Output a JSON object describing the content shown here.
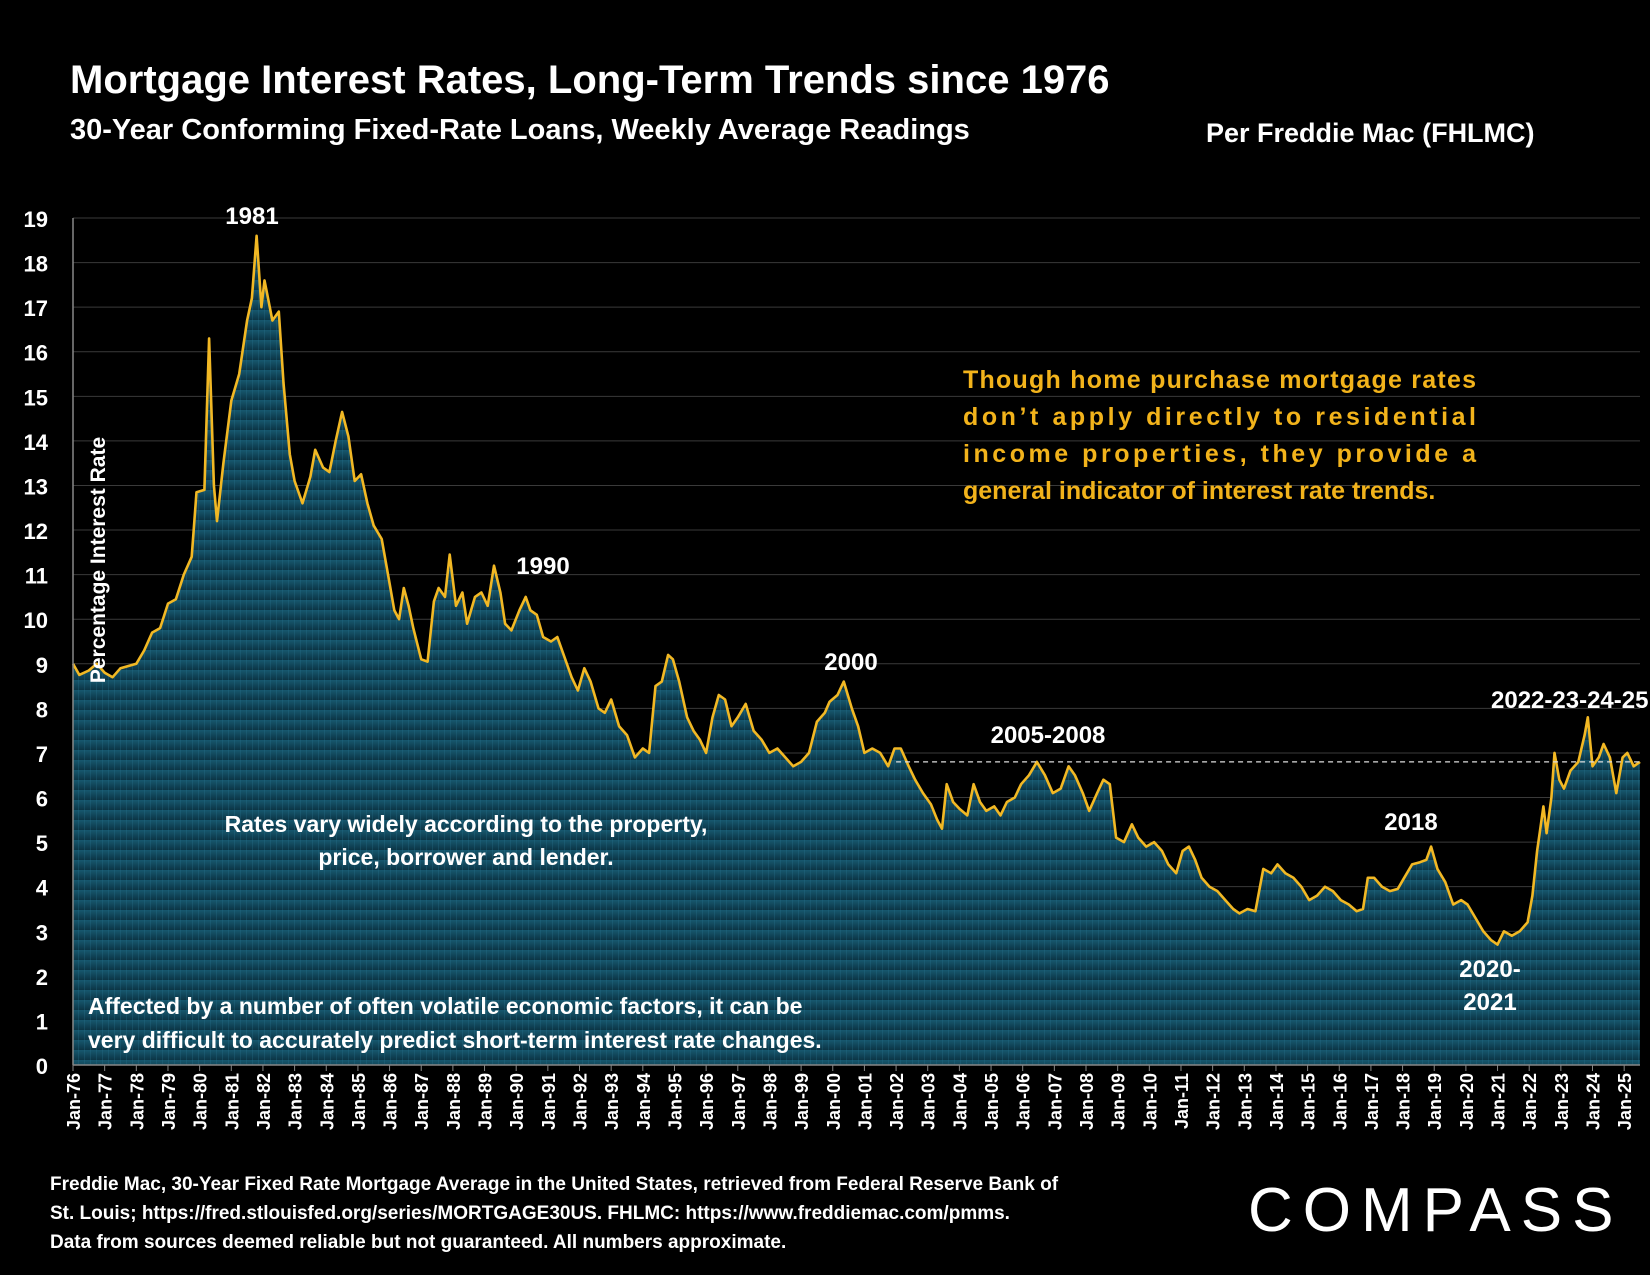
{
  "header": {
    "title": "Mortgage Interest Rates, Long-Term Trends since 1976",
    "subtitle": "30-Year Conforming Fixed-Rate Loans, Weekly Average Readings",
    "source_right": "Per Freddie Mac (FHLMC)"
  },
  "footer": {
    "line1": "Freddie Mac, 30-Year Fixed Rate Mortgage Average in the United States, retrieved from Federal Reserve Bank of",
    "line2": "St.  Louis;  https://fred.stlouisfed.org/series/MORTGAGE30US.  FHLMC:  https://www.freddiemac.com/pmms.",
    "line3": "Data from sources deemed reliable but not guaranteed. All numbers approximate.",
    "logo": "COMPASS"
  },
  "colors": {
    "background": "#000000",
    "line": "#f2b824",
    "area_top": "#16546a",
    "area_bottom": "#0b3344",
    "annotation_gold": "#f2b31b",
    "text": "#ffffff"
  },
  "chart_data": {
    "type": "area",
    "ylabel": "Percentage Interest  Rate",
    "ylim": [
      0,
      19
    ],
    "yticks": [
      "0",
      "1",
      "2",
      "3",
      "4",
      "5",
      "6",
      "7",
      "8",
      "9",
      "10",
      "11",
      "12",
      "13",
      "14",
      "15",
      "16",
      "17",
      "18",
      "19"
    ],
    "grid": true,
    "x_tick_labels": [
      "Jan-76",
      "Jan-77",
      "Jan-78",
      "Jan-79",
      "Jan-80",
      "Jan-81",
      "Jan-82",
      "Jan-83",
      "Jan-84",
      "Jan-85",
      "Jan-86",
      "Jan-87",
      "Jan-88",
      "Jan-89",
      "Jan-90",
      "Jan-91",
      "Jan-92",
      "Jan-93",
      "Jan-94",
      "Jan-95",
      "Jan-96",
      "Jan-97",
      "Jan-98",
      "Jan-99",
      "Jan-00",
      "Jan-01",
      "Jan-02",
      "Jan-03",
      "Jan-04",
      "Jan-05",
      "Jan-06",
      "Jan-07",
      "Jan-08",
      "Jan-09",
      "Jan-10",
      "Jan-11",
      "Jan-12",
      "Jan-13",
      "Jan-14",
      "Jan-15",
      "Jan-16",
      "Jan-17",
      "Jan-18",
      "Jan-19",
      "Jan-20",
      "Jan-21",
      "Jan-22",
      "Jan-23",
      "Jan-24",
      "Jan-25"
    ],
    "x_range": [
      1976.0,
      2025.5
    ],
    "series": [
      {
        "points": [
          [
            1976.0,
            9.0
          ],
          [
            1976.2,
            8.75
          ],
          [
            1976.5,
            8.85
          ],
          [
            1976.75,
            9.0
          ],
          [
            1977.0,
            8.8
          ],
          [
            1977.25,
            8.7
          ],
          [
            1977.5,
            8.9
          ],
          [
            1977.75,
            8.95
          ],
          [
            1978.0,
            9.0
          ],
          [
            1978.25,
            9.3
          ],
          [
            1978.5,
            9.7
          ],
          [
            1978.75,
            9.8
          ],
          [
            1979.0,
            10.35
          ],
          [
            1979.25,
            10.45
          ],
          [
            1979.5,
            11.0
          ],
          [
            1979.75,
            11.4
          ],
          [
            1979.9,
            12.85
          ],
          [
            1980.15,
            12.9
          ],
          [
            1980.3,
            16.3
          ],
          [
            1980.45,
            13.0
          ],
          [
            1980.55,
            12.2
          ],
          [
            1980.75,
            13.5
          ],
          [
            1981.0,
            14.9
          ],
          [
            1981.25,
            15.5
          ],
          [
            1981.5,
            16.7
          ],
          [
            1981.65,
            17.2
          ],
          [
            1981.8,
            18.6
          ],
          [
            1981.95,
            17.0
          ],
          [
            1982.05,
            17.6
          ],
          [
            1982.3,
            16.7
          ],
          [
            1982.5,
            16.9
          ],
          [
            1982.65,
            15.3
          ],
          [
            1982.85,
            13.7
          ],
          [
            1983.0,
            13.1
          ],
          [
            1983.25,
            12.6
          ],
          [
            1983.5,
            13.2
          ],
          [
            1983.65,
            13.8
          ],
          [
            1983.9,
            13.4
          ],
          [
            1984.1,
            13.3
          ],
          [
            1984.3,
            14.0
          ],
          [
            1984.5,
            14.65
          ],
          [
            1984.7,
            14.1
          ],
          [
            1984.9,
            13.1
          ],
          [
            1985.1,
            13.25
          ],
          [
            1985.3,
            12.6
          ],
          [
            1985.5,
            12.1
          ],
          [
            1985.75,
            11.8
          ],
          [
            1986.0,
            10.8
          ],
          [
            1986.15,
            10.2
          ],
          [
            1986.3,
            10.0
          ],
          [
            1986.45,
            10.7
          ],
          [
            1986.6,
            10.3
          ],
          [
            1986.75,
            9.8
          ],
          [
            1987.0,
            9.1
          ],
          [
            1987.2,
            9.05
          ],
          [
            1987.4,
            10.4
          ],
          [
            1987.55,
            10.7
          ],
          [
            1987.75,
            10.5
          ],
          [
            1987.9,
            11.45
          ],
          [
            1988.1,
            10.3
          ],
          [
            1988.3,
            10.6
          ],
          [
            1988.45,
            9.9
          ],
          [
            1988.7,
            10.5
          ],
          [
            1988.9,
            10.6
          ],
          [
            1989.1,
            10.3
          ],
          [
            1989.3,
            11.2
          ],
          [
            1989.5,
            10.6
          ],
          [
            1989.65,
            9.9
          ],
          [
            1989.85,
            9.75
          ],
          [
            1990.1,
            10.2
          ],
          [
            1990.3,
            10.5
          ],
          [
            1990.45,
            10.2
          ],
          [
            1990.65,
            10.1
          ],
          [
            1990.85,
            9.6
          ],
          [
            1991.1,
            9.5
          ],
          [
            1991.3,
            9.6
          ],
          [
            1991.5,
            9.2
          ],
          [
            1991.75,
            8.7
          ],
          [
            1991.95,
            8.4
          ],
          [
            1992.15,
            8.9
          ],
          [
            1992.35,
            8.6
          ],
          [
            1992.6,
            8.0
          ],
          [
            1992.8,
            7.9
          ],
          [
            1993.0,
            8.2
          ],
          [
            1993.25,
            7.6
          ],
          [
            1993.5,
            7.4
          ],
          [
            1993.75,
            6.9
          ],
          [
            1994.0,
            7.1
          ],
          [
            1994.2,
            7.0
          ],
          [
            1994.4,
            8.5
          ],
          [
            1994.6,
            8.6
          ],
          [
            1994.8,
            9.2
          ],
          [
            1994.95,
            9.1
          ],
          [
            1995.15,
            8.6
          ],
          [
            1995.4,
            7.8
          ],
          [
            1995.6,
            7.5
          ],
          [
            1995.8,
            7.3
          ],
          [
            1996.0,
            7.0
          ],
          [
            1996.2,
            7.8
          ],
          [
            1996.4,
            8.3
          ],
          [
            1996.6,
            8.2
          ],
          [
            1996.8,
            7.6
          ],
          [
            1997.0,
            7.8
          ],
          [
            1997.25,
            8.1
          ],
          [
            1997.5,
            7.5
          ],
          [
            1997.75,
            7.3
          ],
          [
            1998.0,
            7.0
          ],
          [
            1998.25,
            7.1
          ],
          [
            1998.5,
            6.9
          ],
          [
            1998.75,
            6.7
          ],
          [
            1999.0,
            6.8
          ],
          [
            1999.25,
            7.0
          ],
          [
            1999.5,
            7.7
          ],
          [
            1999.75,
            7.9
          ],
          [
            1999.9,
            8.15
          ],
          [
            2000.15,
            8.3
          ],
          [
            2000.35,
            8.6
          ],
          [
            2000.6,
            8.0
          ],
          [
            2000.8,
            7.6
          ],
          [
            2001.0,
            7.0
          ],
          [
            2001.25,
            7.1
          ],
          [
            2001.5,
            7.0
          ],
          [
            2001.75,
            6.7
          ],
          [
            2001.95,
            7.1
          ],
          [
            2002.15,
            7.1
          ],
          [
            2002.4,
            6.7
          ],
          [
            2002.6,
            6.4
          ],
          [
            2002.85,
            6.1
          ],
          [
            2003.1,
            5.85
          ],
          [
            2003.3,
            5.5
          ],
          [
            2003.45,
            5.3
          ],
          [
            2003.6,
            6.3
          ],
          [
            2003.8,
            5.9
          ],
          [
            2004.0,
            5.75
          ],
          [
            2004.25,
            5.6
          ],
          [
            2004.45,
            6.3
          ],
          [
            2004.65,
            5.9
          ],
          [
            2004.85,
            5.7
          ],
          [
            2005.1,
            5.8
          ],
          [
            2005.3,
            5.6
          ],
          [
            2005.5,
            5.9
          ],
          [
            2005.75,
            6.0
          ],
          [
            2005.95,
            6.3
          ],
          [
            2006.2,
            6.5
          ],
          [
            2006.45,
            6.8
          ],
          [
            2006.7,
            6.5
          ],
          [
            2006.95,
            6.1
          ],
          [
            2007.2,
            6.2
          ],
          [
            2007.45,
            6.7
          ],
          [
            2007.65,
            6.5
          ],
          [
            2007.9,
            6.1
          ],
          [
            2008.1,
            5.7
          ],
          [
            2008.35,
            6.1
          ],
          [
            2008.55,
            6.4
          ],
          [
            2008.75,
            6.3
          ],
          [
            2008.95,
            5.1
          ],
          [
            2009.2,
            5.0
          ],
          [
            2009.45,
            5.4
          ],
          [
            2009.65,
            5.1
          ],
          [
            2009.9,
            4.9
          ],
          [
            2010.15,
            5.0
          ],
          [
            2010.4,
            4.8
          ],
          [
            2010.6,
            4.5
          ],
          [
            2010.85,
            4.3
          ],
          [
            2011.05,
            4.8
          ],
          [
            2011.25,
            4.9
          ],
          [
            2011.45,
            4.6
          ],
          [
            2011.65,
            4.2
          ],
          [
            2011.9,
            4.0
          ],
          [
            2012.15,
            3.9
          ],
          [
            2012.4,
            3.7
          ],
          [
            2012.65,
            3.5
          ],
          [
            2012.85,
            3.4
          ],
          [
            2013.1,
            3.5
          ],
          [
            2013.35,
            3.45
          ],
          [
            2013.6,
            4.4
          ],
          [
            2013.85,
            4.3
          ],
          [
            2014.05,
            4.5
          ],
          [
            2014.3,
            4.3
          ],
          [
            2014.55,
            4.2
          ],
          [
            2014.8,
            4.0
          ],
          [
            2015.05,
            3.7
          ],
          [
            2015.3,
            3.8
          ],
          [
            2015.55,
            4.0
          ],
          [
            2015.8,
            3.9
          ],
          [
            2016.05,
            3.7
          ],
          [
            2016.3,
            3.6
          ],
          [
            2016.55,
            3.45
          ],
          [
            2016.75,
            3.5
          ],
          [
            2016.9,
            4.2
          ],
          [
            2017.1,
            4.2
          ],
          [
            2017.35,
            4.0
          ],
          [
            2017.6,
            3.9
          ],
          [
            2017.85,
            3.95
          ],
          [
            2018.05,
            4.2
          ],
          [
            2018.3,
            4.5
          ],
          [
            2018.55,
            4.55
          ],
          [
            2018.75,
            4.6
          ],
          [
            2018.9,
            4.9
          ],
          [
            2019.1,
            4.4
          ],
          [
            2019.35,
            4.1
          ],
          [
            2019.6,
            3.6
          ],
          [
            2019.85,
            3.7
          ],
          [
            2020.05,
            3.6
          ],
          [
            2020.3,
            3.3
          ],
          [
            2020.55,
            3.0
          ],
          [
            2020.8,
            2.8
          ],
          [
            2021.0,
            2.7
          ],
          [
            2021.2,
            3.0
          ],
          [
            2021.45,
            2.9
          ],
          [
            2021.7,
            3.0
          ],
          [
            2021.95,
            3.2
          ],
          [
            2022.1,
            3.8
          ],
          [
            2022.25,
            4.8
          ],
          [
            2022.35,
            5.3
          ],
          [
            2022.45,
            5.8
          ],
          [
            2022.55,
            5.2
          ],
          [
            2022.7,
            6.0
          ],
          [
            2022.8,
            7.0
          ],
          [
            2022.95,
            6.4
          ],
          [
            2023.1,
            6.2
          ],
          [
            2023.3,
            6.6
          ],
          [
            2023.55,
            6.8
          ],
          [
            2023.75,
            7.4
          ],
          [
            2023.85,
            7.8
          ],
          [
            2024.0,
            6.7
          ],
          [
            2024.2,
            6.9
          ],
          [
            2024.35,
            7.2
          ],
          [
            2024.55,
            6.9
          ],
          [
            2024.75,
            6.1
          ],
          [
            2024.95,
            6.9
          ],
          [
            2025.1,
            7.0
          ],
          [
            2025.3,
            6.7
          ],
          [
            2025.5,
            6.8
          ]
        ]
      }
    ],
    "reference_line": {
      "y": 6.8,
      "x_start": 2002.0,
      "x_end": 2025.5,
      "style": "dashed"
    },
    "annotations": {
      "a1981": "1981",
      "a1990": "1990",
      "a2000": "2000",
      "a2005": "2005-2008",
      "a2018": "2018",
      "a2020_l1": "2020-",
      "a2020_l2": "2021",
      "a2022": "2022-23-24-25",
      "note_gold": [
        "Though  home  purchase  mortgage  rates",
        "don’t    apply    directly    to    residential",
        "income    properties,    they    provide    a",
        "general indicator of interest rate trends."
      ],
      "note_rates": [
        "Rates vary widely according to the property,",
        "price, borrower and lender."
      ],
      "note_volatile": [
        "Affected by a number of often volatile economic factors, it can be",
        "very difficult to accurately predict short-term interest rate changes."
      ]
    }
  }
}
